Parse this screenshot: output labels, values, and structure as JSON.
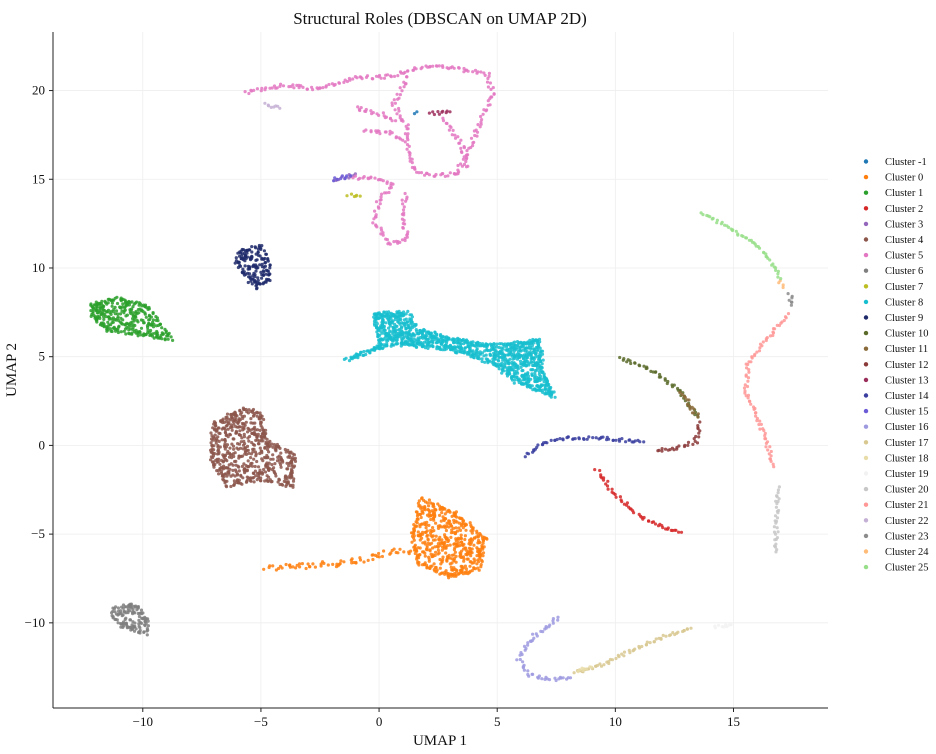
{
  "chart_data": {
    "type": "scatter",
    "title": "Structural Roles (DBSCAN on UMAP 2D)",
    "xlabel": "UMAP 1",
    "ylabel": "UMAP 2",
    "xlim": [
      -13.8,
      19.0
    ],
    "ylim": [
      -14.8,
      23.3
    ],
    "xticks": [
      -10,
      -5,
      0,
      5,
      10,
      15
    ],
    "yticks": [
      -10,
      -5,
      0,
      5,
      10,
      15,
      20
    ],
    "xtick_labels": [
      "−10",
      "−5",
      "0",
      "5",
      "10",
      "15"
    ],
    "ytick_labels": [
      "−10",
      "−5",
      "0",
      "5",
      "10",
      "15",
      "20"
    ],
    "grid": true,
    "legend_position": "right",
    "series": [
      {
        "name": "Cluster -1",
        "color": "#1f77b4",
        "shape": "blob",
        "points": [
          [
            1.6,
            18.8
          ],
          [
            1.5,
            18.7
          ]
        ]
      },
      {
        "name": "Cluster 0",
        "color": "#ff7f0e",
        "shape": "blob",
        "outline": [
          [
            1.8,
            -3.0
          ],
          [
            3.2,
            -3.8
          ],
          [
            4.5,
            -5.2
          ],
          [
            4.2,
            -7.0
          ],
          [
            3.0,
            -7.4
          ],
          [
            1.6,
            -6.6
          ],
          [
            1.4,
            -5.0
          ]
        ],
        "path": [
          [
            -4.8,
            -6.9
          ],
          [
            -3.2,
            -6.8
          ],
          [
            -1.5,
            -6.6
          ],
          [
            -0.5,
            -6.4
          ],
          [
            0.5,
            -6.0
          ],
          [
            1.5,
            -5.9
          ]
        ],
        "path_width": 0.35
      },
      {
        "name": "Cluster 1",
        "color": "#2ca02c",
        "shape": "blob",
        "outline": [
          [
            -12.2,
            7.9
          ],
          [
            -11.0,
            8.3
          ],
          [
            -9.8,
            7.8
          ],
          [
            -8.8,
            6.0
          ],
          [
            -10.0,
            6.2
          ],
          [
            -11.5,
            6.5
          ],
          [
            -12.1,
            7.2
          ]
        ]
      },
      {
        "name": "Cluster 2",
        "color": "#d62728",
        "shape": "curve",
        "path": [
          [
            9.2,
            -1.4
          ],
          [
            10.0,
            -2.8
          ],
          [
            11.0,
            -4.0
          ],
          [
            12.0,
            -4.6
          ],
          [
            12.8,
            -4.9
          ]
        ]
      },
      {
        "name": "Cluster 3",
        "color": "#9467bd",
        "shape": "curve",
        "path": [
          [
            -1.9,
            14.9
          ],
          [
            -1.0,
            15.3
          ]
        ]
      },
      {
        "name": "Cluster 4",
        "color": "#8c564b",
        "shape": "blob",
        "outline": [
          [
            -7.0,
            1.2
          ],
          [
            -5.8,
            2.1
          ],
          [
            -5.0,
            1.8
          ],
          [
            -4.8,
            0.3
          ],
          [
            -3.6,
            -0.5
          ],
          [
            -3.7,
            -2.3
          ],
          [
            -5.0,
            -1.9
          ],
          [
            -6.4,
            -2.3
          ],
          [
            -7.1,
            -0.8
          ]
        ]
      },
      {
        "name": "Cluster 5",
        "color": "#e377c2",
        "shape": "curve",
        "paths": [
          [
            [
              -5.6,
              19.9
            ],
            [
              -4.0,
              20.3
            ],
            [
              -2.5,
              20.1
            ],
            [
              -1.0,
              20.7
            ],
            [
              0.5,
              20.8
            ],
            [
              2.0,
              21.4
            ],
            [
              3.5,
              21.2
            ],
            [
              4.6,
              20.9
            ],
            [
              4.8,
              19.8
            ],
            [
              4.3,
              18.3
            ],
            [
              3.6,
              16.0
            ],
            [
              3.2,
              15.3
            ]
          ],
          [
            [
              1.2,
              20.8
            ],
            [
              0.6,
              19.2
            ],
            [
              1.2,
              18.0
            ],
            [
              1.2,
              16.8
            ],
            [
              1.5,
              15.5
            ],
            [
              2.2,
              15.2
            ],
            [
              3.3,
              15.3
            ]
          ],
          [
            [
              -1.0,
              19.0
            ],
            [
              0.0,
              18.7
            ],
            [
              0.7,
              18.3
            ]
          ],
          [
            [
              -0.6,
              17.8
            ],
            [
              0.5,
              17.6
            ],
            [
              1.0,
              17.2
            ]
          ],
          [
            [
              -1.1,
              15.1
            ],
            [
              0.0,
              15.0
            ],
            [
              0.6,
              14.6
            ],
            [
              0.0,
              13.8
            ],
            [
              -0.2,
              12.6
            ],
            [
              0.4,
              11.4
            ],
            [
              1.2,
              11.6
            ],
            [
              1.0,
              12.8
            ],
            [
              1.1,
              14.2
            ]
          ],
          [
            [
              2.7,
              18.4
            ],
            [
              3.5,
              17.0
            ],
            [
              3.7,
              15.7
            ]
          ]
        ]
      },
      {
        "name": "Cluster 6",
        "color": "#7f7f7f",
        "shape": "blob",
        "outline": [
          [
            -11.2,
            -9.2
          ],
          [
            -10.4,
            -8.9
          ],
          [
            -9.8,
            -9.8
          ],
          [
            -9.9,
            -10.6
          ],
          [
            -10.7,
            -10.3
          ],
          [
            -11.3,
            -9.7
          ]
        ]
      },
      {
        "name": "Cluster 7",
        "color": "#bcbd22",
        "shape": "curve",
        "path": [
          [
            -1.3,
            14.1
          ],
          [
            -0.8,
            14.05
          ]
        ]
      },
      {
        "name": "Cluster 8",
        "color": "#17becf",
        "shape": "blob",
        "outline": [
          [
            -0.2,
            7.4
          ],
          [
            1.2,
            7.5
          ],
          [
            1.6,
            6.6
          ],
          [
            2.8,
            6.1
          ],
          [
            4.5,
            5.7
          ],
          [
            6.0,
            5.8
          ],
          [
            6.8,
            6.0
          ],
          [
            6.9,
            4.4
          ],
          [
            7.4,
            2.7
          ],
          [
            5.8,
            3.6
          ],
          [
            4.8,
            4.6
          ],
          [
            3.6,
            5.2
          ],
          [
            2.5,
            5.5
          ],
          [
            0.6,
            5.7
          ],
          [
            -1.4,
            4.8
          ],
          [
            0.0,
            5.6
          ]
        ]
      },
      {
        "name": "Cluster 9",
        "color": "#1f2a6b",
        "shape": "blob",
        "outline": [
          [
            -5.9,
            10.9
          ],
          [
            -5.0,
            11.3
          ],
          [
            -4.7,
            10.2
          ],
          [
            -4.6,
            9.3
          ],
          [
            -5.2,
            8.9
          ],
          [
            -5.7,
            9.6
          ],
          [
            -6.0,
            10.3
          ]
        ]
      },
      {
        "name": "Cluster 10",
        "color": "#5b6b2a",
        "shape": "curve",
        "path": [
          [
            10.2,
            4.9
          ],
          [
            11.6,
            4.2
          ],
          [
            12.7,
            3.1
          ],
          [
            13.5,
            1.6
          ]
        ]
      },
      {
        "name": "Cluster 11",
        "color": "#8a6a3a",
        "shape": "curve",
        "path": [
          [
            12.8,
            3.0
          ],
          [
            13.5,
            1.6
          ]
        ]
      },
      {
        "name": "Cluster 12",
        "color": "#8b3a3a",
        "shape": "curve",
        "path": [
          [
            13.6,
            1.3
          ],
          [
            13.4,
            0.2
          ],
          [
            12.5,
            -0.2
          ],
          [
            11.8,
            -0.3
          ]
        ]
      },
      {
        "name": "Cluster 13",
        "color": "#9b2d5a",
        "shape": "curve",
        "path": [
          [
            2.2,
            18.7
          ],
          [
            3.0,
            18.8
          ]
        ]
      },
      {
        "name": "Cluster 14",
        "color": "#3b3fa0",
        "shape": "curve",
        "path": [
          [
            6.2,
            -0.6
          ],
          [
            7.0,
            0.2
          ],
          [
            8.0,
            0.4
          ],
          [
            9.5,
            0.4
          ],
          [
            11.2,
            0.2
          ]
        ]
      },
      {
        "name": "Cluster 15",
        "color": "#6b5bd6",
        "shape": "curve",
        "path": [
          [
            -1.9,
            15.0
          ],
          [
            -1.2,
            15.2
          ]
        ]
      },
      {
        "name": "Cluster 16",
        "color": "#9e9ae0",
        "shape": "curve",
        "path": [
          [
            7.6,
            -9.7
          ],
          [
            6.5,
            -10.8
          ],
          [
            5.9,
            -12.0
          ],
          [
            6.3,
            -12.9
          ],
          [
            7.2,
            -13.2
          ],
          [
            8.1,
            -13.1
          ]
        ]
      },
      {
        "name": "Cluster 17",
        "color": "#d8c890",
        "shape": "curve",
        "path": [
          [
            8.3,
            -12.8
          ],
          [
            9.6,
            -12.3
          ],
          [
            10.8,
            -11.5
          ],
          [
            12.0,
            -10.8
          ],
          [
            13.2,
            -10.3
          ]
        ]
      },
      {
        "name": "Cluster 18",
        "color": "#e8dca8",
        "shape": "curve",
        "path": [
          [
            8.4,
            -12.7
          ],
          [
            9.0,
            -12.5
          ]
        ]
      },
      {
        "name": "Cluster 19",
        "color": "#f2f2f2",
        "shape": "curve",
        "path": [
          [
            14.2,
            -10.2
          ],
          [
            14.9,
            -10.1
          ]
        ]
      },
      {
        "name": "Cluster 20",
        "color": "#c7c7c7",
        "shape": "curve",
        "path": [
          [
            16.9,
            -2.4
          ],
          [
            16.8,
            -4.2
          ],
          [
            16.8,
            -6.0
          ]
        ]
      },
      {
        "name": "Cluster 21",
        "color": "#ff9896",
        "shape": "curve",
        "path": [
          [
            17.3,
            7.4
          ],
          [
            16.4,
            6.0
          ],
          [
            15.6,
            4.6
          ],
          [
            15.5,
            3.0
          ],
          [
            16.2,
            1.0
          ],
          [
            16.7,
            -1.2
          ]
        ]
      },
      {
        "name": "Cluster 22",
        "color": "#c5b0d5",
        "shape": "curve",
        "path": [
          [
            -4.8,
            19.2
          ],
          [
            -4.2,
            19.0
          ]
        ]
      },
      {
        "name": "Cluster 23",
        "color": "#8c8c8c",
        "shape": "curve",
        "path": [
          [
            17.4,
            8.6
          ],
          [
            17.45,
            7.9
          ]
        ]
      },
      {
        "name": "Cluster 24",
        "color": "#ffbb78",
        "shape": "curve",
        "path": [
          [
            16.9,
            9.2
          ],
          [
            17.1,
            8.9
          ]
        ]
      },
      {
        "name": "Cluster 25",
        "color": "#98df8a",
        "shape": "curve",
        "path": [
          [
            13.7,
            13.1
          ],
          [
            14.8,
            12.3
          ],
          [
            15.9,
            11.4
          ],
          [
            16.6,
            10.3
          ],
          [
            17.0,
            9.4
          ]
        ]
      }
    ]
  }
}
